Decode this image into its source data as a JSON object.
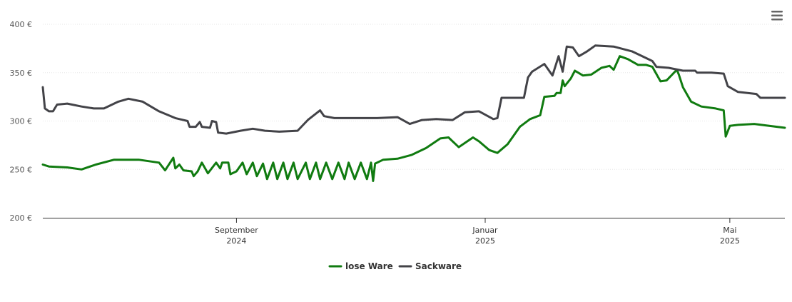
{
  "chart_data": {
    "type": "line",
    "title": "",
    "xlabel": "",
    "ylabel": "",
    "ylim": [
      200,
      400
    ],
    "y_ticks": [
      {
        "value": 400,
        "label": "400 €"
      },
      {
        "value": 350,
        "label": "350 €"
      },
      {
        "value": 300,
        "label": "300 €"
      },
      {
        "value": 250,
        "label": "250 €"
      },
      {
        "value": 200,
        "label": "200 €"
      }
    ],
    "x_range": [
      "2024-05-29",
      "2025-05-28"
    ],
    "x_ticks": [
      {
        "date": "2024-09-01",
        "month": "September",
        "year": "2024"
      },
      {
        "date": "2025-01-01",
        "month": "Januar",
        "year": "2025"
      },
      {
        "date": "2025-05-01",
        "month": "Mai",
        "year": "2025"
      }
    ],
    "grid": true,
    "legend_position": "bottom-center",
    "series": [
      {
        "name": "lose Ware",
        "color": "#107b10",
        "points": [
          [
            "2024-05-29",
            255
          ],
          [
            "2024-06-01",
            253
          ],
          [
            "2024-06-10",
            252
          ],
          [
            "2024-06-17",
            250
          ],
          [
            "2024-06-24",
            255
          ],
          [
            "2024-07-03",
            260
          ],
          [
            "2024-07-15",
            260
          ],
          [
            "2024-07-25",
            257
          ],
          [
            "2024-07-28",
            249
          ],
          [
            "2024-08-01",
            262
          ],
          [
            "2024-08-02",
            251
          ],
          [
            "2024-08-04",
            255
          ],
          [
            "2024-08-06",
            249
          ],
          [
            "2024-08-10",
            248
          ],
          [
            "2024-08-11",
            243
          ],
          [
            "2024-08-13",
            248
          ],
          [
            "2024-08-15",
            257
          ],
          [
            "2024-08-18",
            246
          ],
          [
            "2024-08-22",
            257
          ],
          [
            "2024-08-24",
            251
          ],
          [
            "2024-08-25",
            257
          ],
          [
            "2024-08-28",
            257
          ],
          [
            "2024-08-29",
            245
          ],
          [
            "2024-09-01",
            248
          ],
          [
            "2024-09-04",
            257
          ],
          [
            "2024-09-06",
            245
          ],
          [
            "2024-09-09",
            257
          ],
          [
            "2024-09-11",
            243
          ],
          [
            "2024-09-14",
            256
          ],
          [
            "2024-09-16",
            240
          ],
          [
            "2024-09-19",
            257
          ],
          [
            "2024-09-21",
            240
          ],
          [
            "2024-09-24",
            257
          ],
          [
            "2024-09-26",
            240
          ],
          [
            "2024-09-29",
            257
          ],
          [
            "2024-10-01",
            240
          ],
          [
            "2024-10-05",
            257
          ],
          [
            "2024-10-07",
            240
          ],
          [
            "2024-10-10",
            257
          ],
          [
            "2024-10-12",
            240
          ],
          [
            "2024-10-15",
            257
          ],
          [
            "2024-10-18",
            240
          ],
          [
            "2024-10-21",
            257
          ],
          [
            "2024-10-24",
            240
          ],
          [
            "2024-10-26",
            257
          ],
          [
            "2024-10-29",
            240
          ],
          [
            "2024-11-01",
            257
          ],
          [
            "2024-11-04",
            240
          ],
          [
            "2024-11-06",
            257
          ],
          [
            "2024-11-07",
            238
          ],
          [
            "2024-11-08",
            256
          ],
          [
            "2024-11-12",
            260
          ],
          [
            "2024-11-19",
            261
          ],
          [
            "2024-11-26",
            265
          ],
          [
            "2024-12-03",
            272
          ],
          [
            "2024-12-10",
            282
          ],
          [
            "2024-12-14",
            283
          ],
          [
            "2024-12-19",
            273
          ],
          [
            "2024-12-26",
            283
          ],
          [
            "2024-12-29",
            279
          ],
          [
            "2025-01-03",
            270
          ],
          [
            "2025-01-07",
            267
          ],
          [
            "2025-01-12",
            276
          ],
          [
            "2025-01-18",
            294
          ],
          [
            "2025-01-23",
            302
          ],
          [
            "2025-01-28",
            306
          ],
          [
            "2025-01-30",
            325
          ],
          [
            "2025-02-04",
            326
          ],
          [
            "2025-02-05",
            329
          ],
          [
            "2025-02-07",
            329
          ],
          [
            "2025-02-08",
            342
          ],
          [
            "2025-02-09",
            336
          ],
          [
            "2025-02-12",
            344
          ],
          [
            "2025-02-14",
            352
          ],
          [
            "2025-02-18",
            347
          ],
          [
            "2025-02-22",
            348
          ],
          [
            "2025-02-27",
            355
          ],
          [
            "2025-03-03",
            357
          ],
          [
            "2025-03-05",
            353
          ],
          [
            "2025-03-08",
            367
          ],
          [
            "2025-03-12",
            364
          ],
          [
            "2025-03-17",
            358
          ],
          [
            "2025-03-21",
            358
          ],
          [
            "2025-03-24",
            356
          ],
          [
            "2025-03-28",
            341
          ],
          [
            "2025-03-31",
            342
          ],
          [
            "2025-04-05",
            353
          ],
          [
            "2025-04-06",
            348
          ],
          [
            "2025-04-08",
            335
          ],
          [
            "2025-04-12",
            320
          ],
          [
            "2025-04-17",
            315
          ],
          [
            "2025-04-24",
            313
          ],
          [
            "2025-04-28",
            311
          ],
          [
            "2025-04-29",
            284
          ],
          [
            "2025-05-01",
            295
          ],
          [
            "2025-05-05",
            296
          ],
          [
            "2025-05-13",
            297
          ],
          [
            "2025-05-28",
            293
          ]
        ]
      },
      {
        "name": "Sackware",
        "color": "#434348",
        "points": [
          [
            "2024-05-29",
            335
          ],
          [
            "2024-05-30",
            313
          ],
          [
            "2024-06-01",
            310
          ],
          [
            "2024-06-03",
            310
          ],
          [
            "2024-06-05",
            317
          ],
          [
            "2024-06-10",
            318
          ],
          [
            "2024-06-17",
            315
          ],
          [
            "2024-06-23",
            313
          ],
          [
            "2024-06-28",
            313
          ],
          [
            "2024-07-05",
            320
          ],
          [
            "2024-07-10",
            323
          ],
          [
            "2024-07-17",
            320
          ],
          [
            "2024-07-25",
            310
          ],
          [
            "2024-08-02",
            303
          ],
          [
            "2024-08-08",
            300
          ],
          [
            "2024-08-09",
            294
          ],
          [
            "2024-08-12",
            294
          ],
          [
            "2024-08-14",
            299
          ],
          [
            "2024-08-15",
            294
          ],
          [
            "2024-08-19",
            293
          ],
          [
            "2024-08-20",
            300
          ],
          [
            "2024-08-22",
            299
          ],
          [
            "2024-08-23",
            288
          ],
          [
            "2024-08-27",
            287
          ],
          [
            "2024-09-03",
            290
          ],
          [
            "2024-09-09",
            292
          ],
          [
            "2024-09-15",
            290
          ],
          [
            "2024-09-22",
            289
          ],
          [
            "2024-10-01",
            290
          ],
          [
            "2024-10-06",
            301
          ],
          [
            "2024-10-12",
            311
          ],
          [
            "2024-10-14",
            305
          ],
          [
            "2024-10-19",
            303
          ],
          [
            "2024-10-26",
            303
          ],
          [
            "2024-11-02",
            303
          ],
          [
            "2024-11-09",
            303
          ],
          [
            "2024-11-19",
            304
          ],
          [
            "2024-11-25",
            297
          ],
          [
            "2024-12-01",
            301
          ],
          [
            "2024-12-08",
            302
          ],
          [
            "2024-12-16",
            301
          ],
          [
            "2024-12-22",
            309
          ],
          [
            "2024-12-29",
            310
          ],
          [
            "2025-01-05",
            302
          ],
          [
            "2025-01-07",
            303
          ],
          [
            "2025-01-09",
            324
          ],
          [
            "2025-01-15",
            324
          ],
          [
            "2025-01-20",
            324
          ],
          [
            "2025-01-22",
            345
          ],
          [
            "2025-01-24",
            351
          ],
          [
            "2025-01-30",
            359
          ],
          [
            "2025-02-03",
            347
          ],
          [
            "2025-02-06",
            367
          ],
          [
            "2025-02-08",
            351
          ],
          [
            "2025-02-10",
            377
          ],
          [
            "2025-02-13",
            376
          ],
          [
            "2025-02-16",
            367
          ],
          [
            "2025-02-20",
            372
          ],
          [
            "2025-02-24",
            378
          ],
          [
            "2025-03-05",
            377
          ],
          [
            "2025-03-14",
            372
          ],
          [
            "2025-03-24",
            362
          ],
          [
            "2025-03-26",
            356
          ],
          [
            "2025-04-01",
            355
          ],
          [
            "2025-04-08",
            352
          ],
          [
            "2025-04-14",
            352
          ],
          [
            "2025-04-15",
            350
          ],
          [
            "2025-04-22",
            350
          ],
          [
            "2025-04-28",
            349
          ],
          [
            "2025-04-30",
            336
          ],
          [
            "2025-05-05",
            330
          ],
          [
            "2025-05-14",
            328
          ],
          [
            "2025-05-16",
            324
          ],
          [
            "2025-05-28",
            324
          ]
        ]
      }
    ]
  },
  "menu": {
    "icon": "hamburger-menu-icon"
  }
}
